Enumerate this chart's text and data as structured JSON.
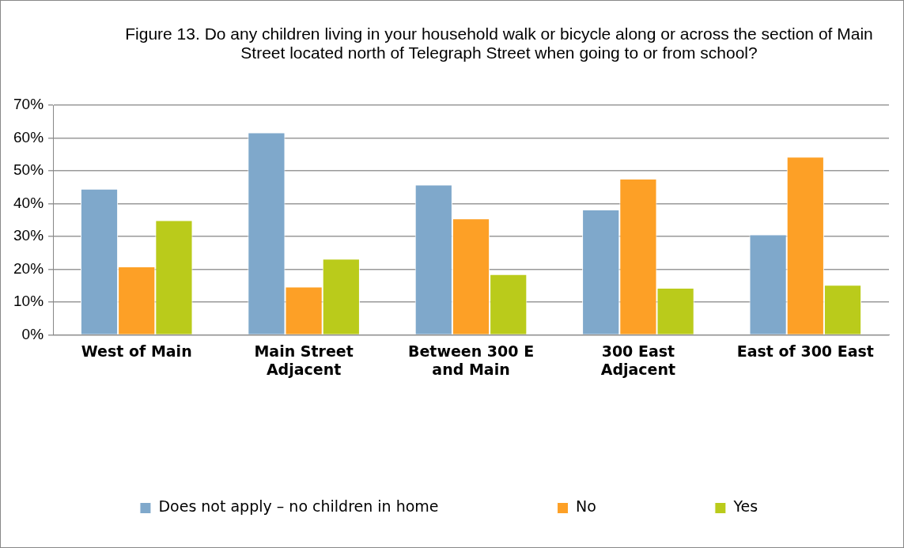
{
  "chart_data": {
    "type": "bar",
    "title": "Figure 13. Do any children living in your household walk or bicycle along or across the section of Main Street located north of Telegraph Street when going to or from school?",
    "categories": [
      "West of Main",
      "Main Street Adjacent",
      "Between 300 E and Main",
      "300 East Adjacent",
      "East of 300 East"
    ],
    "series": [
      {
        "name": "Does not apply – no children in home",
        "color": "#7fa8cb",
        "values": [
          44.5,
          61.7,
          45.8,
          38.2,
          30.6
        ]
      },
      {
        "name": "No",
        "color": "#fda026",
        "values": [
          20.8,
          14.7,
          35.5,
          47.6,
          54.3
        ]
      },
      {
        "name": "Yes",
        "color": "#bacb1b",
        "values": [
          34.9,
          23.2,
          18.5,
          14.3,
          15.2
        ]
      }
    ],
    "ylim": [
      0,
      70
    ],
    "yticks": [
      {
        "value": 0,
        "label": "0%"
      },
      {
        "value": 10,
        "label": "10%"
      },
      {
        "value": 20,
        "label": "20%"
      },
      {
        "value": 30,
        "label": "30%"
      },
      {
        "value": 40,
        "label": "40%"
      },
      {
        "value": 50,
        "label": "50%"
      },
      {
        "value": 60,
        "label": "60%"
      },
      {
        "value": 70,
        "label": "70%"
      }
    ],
    "grid": "y",
    "legend": "bottom"
  }
}
